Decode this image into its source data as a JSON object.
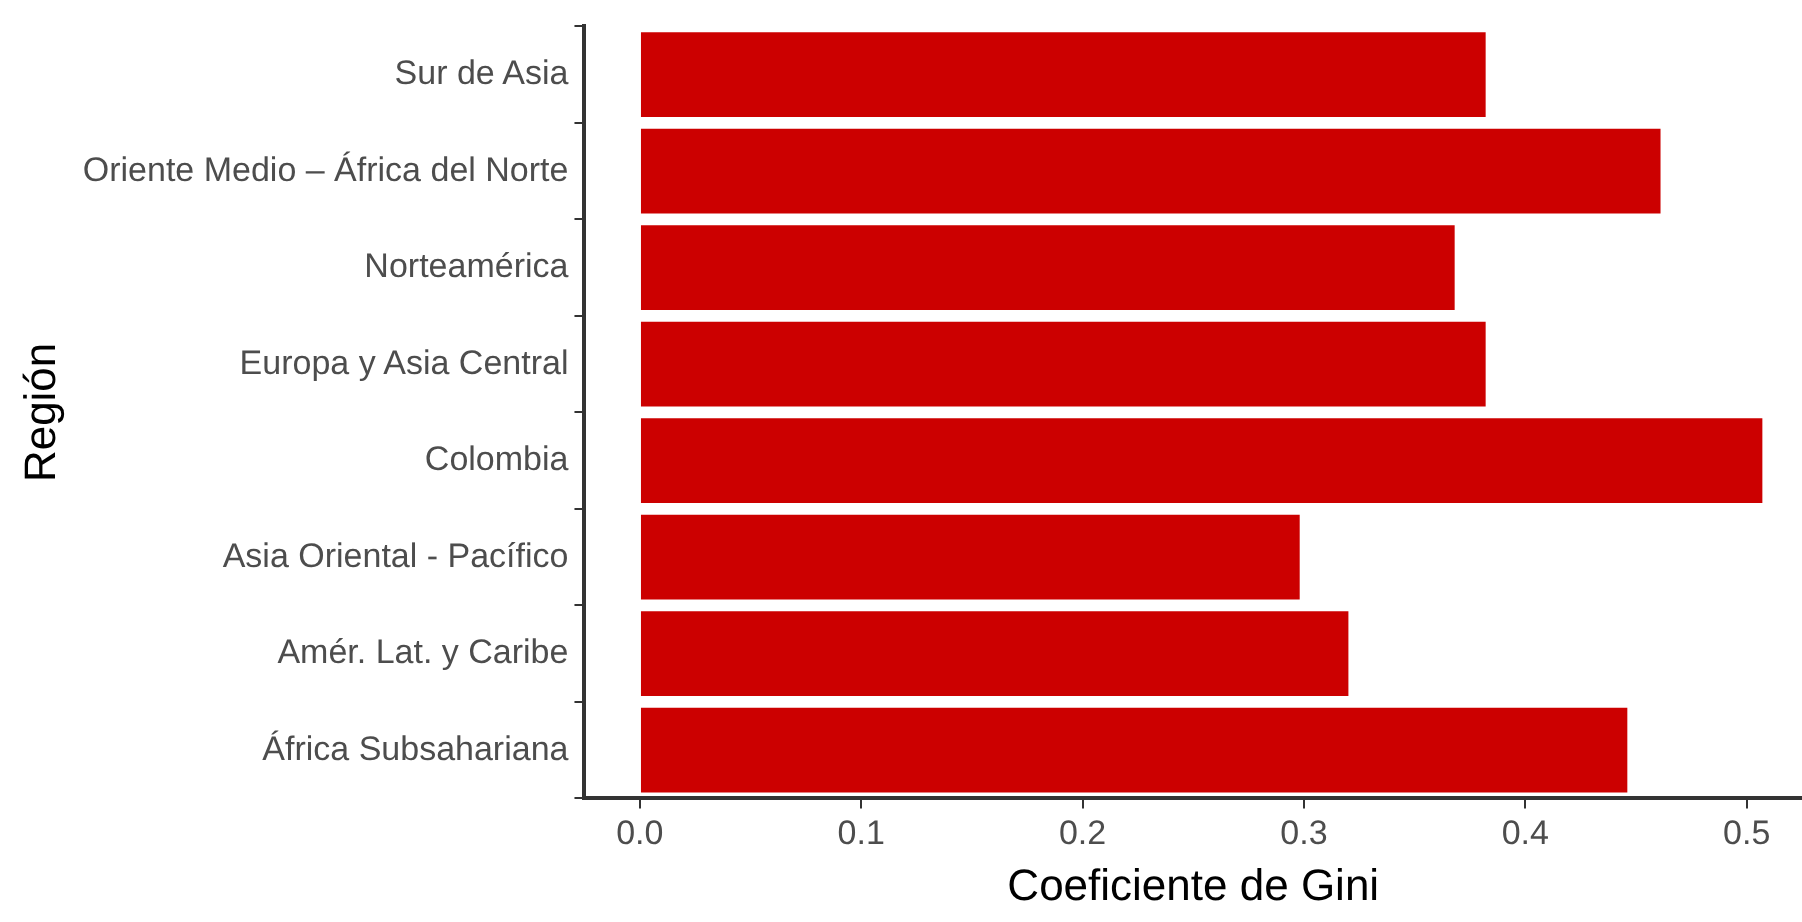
{
  "chart_data": {
    "type": "bar",
    "orientation": "horizontal",
    "xlabel": "Coeficiente de Gini",
    "ylabel": "Región",
    "categories": [
      "Sur de Asia",
      "Oriente Medio – África del Norte",
      "Norteamérica",
      "Europa y Asia Central",
      "Colombia",
      "Asia Oriental - Pacífico",
      "Amér. Lat. y Caribe",
      "África Subsahariana"
    ],
    "values": [
      0.383,
      0.462,
      0.369,
      0.383,
      0.508,
      0.299,
      0.321,
      0.447
    ],
    "color": "#cc0000",
    "xlim": [
      -0.025,
      0.525
    ],
    "xticks": [
      {
        "value": 0,
        "label": "0.0"
      },
      0.1,
      0.2,
      0.3,
      0.4,
      0.5
    ],
    "grid": false,
    "legend": false
  }
}
